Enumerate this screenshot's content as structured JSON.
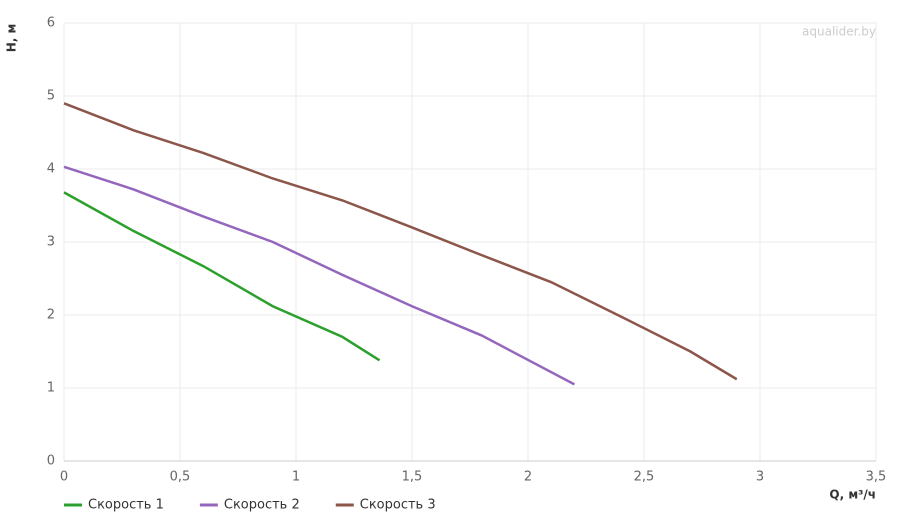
{
  "chart_data": {
    "type": "line",
    "watermark": "aqualider.by",
    "x_label": "Q, м³/ч",
    "y_label": "H, м",
    "xlim": [
      0,
      3.5
    ],
    "ylim": [
      0,
      6
    ],
    "xticks": [
      0,
      {
        "value": 0.5,
        "label": "0,5"
      },
      1,
      {
        "value": 1.5,
        "label": "1,5"
      },
      2,
      {
        "value": 2.5,
        "label": "2,5"
      },
      3,
      {
        "value": 3.5,
        "label": "3,5"
      }
    ],
    "yticks": [
      0,
      1,
      2,
      3,
      4,
      5,
      6
    ],
    "grid": true,
    "legend": "bottom-left",
    "series": [
      {
        "name": "Скорость 1",
        "color": "#2ca02c",
        "x": [
          0,
          0.3,
          0.6,
          0.9,
          1.2,
          1.36
        ],
        "values": [
          3.68,
          3.15,
          2.67,
          2.12,
          1.7,
          1.38
        ]
      },
      {
        "name": "Скорость 2",
        "color": "#9467bd",
        "x": [
          0,
          0.3,
          0.6,
          0.9,
          1.2,
          1.5,
          1.8,
          2.2
        ],
        "values": [
          4.03,
          3.72,
          3.35,
          3.0,
          2.55,
          2.12,
          1.72,
          1.05
        ]
      },
      {
        "name": "Скорость 3",
        "color": "#8c564b",
        "x": [
          0,
          0.3,
          0.6,
          0.9,
          1.2,
          1.5,
          1.8,
          2.1,
          2.4,
          2.7,
          2.9
        ],
        "values": [
          4.9,
          4.53,
          4.22,
          3.87,
          3.57,
          3.2,
          2.82,
          2.45,
          1.98,
          1.5,
          1.12
        ]
      }
    ]
  }
}
